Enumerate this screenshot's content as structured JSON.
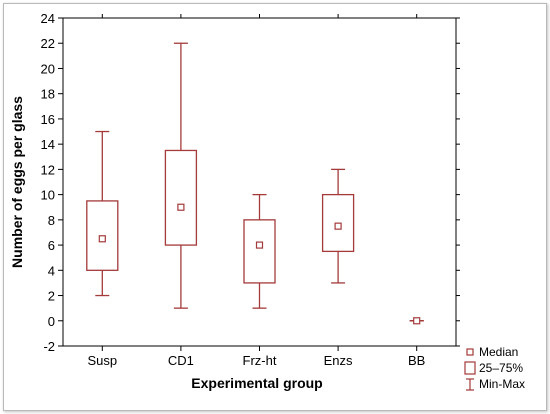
{
  "chart_data": {
    "type": "boxplot",
    "title": "",
    "xlabel": "Experimental group",
    "ylabel": "Number of eggs per glass",
    "ylim": [
      -2,
      24
    ],
    "yticks": [
      "-2",
      "0",
      "2",
      "4",
      "6",
      "8",
      "10",
      "12",
      "14",
      "16",
      "18",
      "20",
      "22",
      "24"
    ],
    "categories": [
      "Susp",
      "CD1",
      "Frz-ht",
      "Enzs",
      "BB"
    ],
    "series": [
      {
        "category": "Susp",
        "min": 2,
        "q1": 4,
        "median": 6.5,
        "q3": 9.5,
        "max": 15
      },
      {
        "category": "CD1",
        "min": 1,
        "q1": 6,
        "median": 9,
        "q3": 13.5,
        "max": 22
      },
      {
        "category": "Frz-ht",
        "min": 1,
        "q1": 3,
        "median": 6,
        "q3": 8,
        "max": 10
      },
      {
        "category": "Enzs",
        "min": 3,
        "q1": 5.5,
        "median": 7.5,
        "q3": 10,
        "max": 12
      },
      {
        "category": "BB",
        "min": 0,
        "q1": 0,
        "median": 0,
        "q3": 0,
        "max": 0
      }
    ],
    "grid": false,
    "legend": {
      "placement": "bottom-right",
      "entries": [
        "Median",
        "25–75%",
        "Min-Max"
      ]
    },
    "colors": {
      "box": "#a43a3a",
      "axis": "#000000"
    }
  }
}
